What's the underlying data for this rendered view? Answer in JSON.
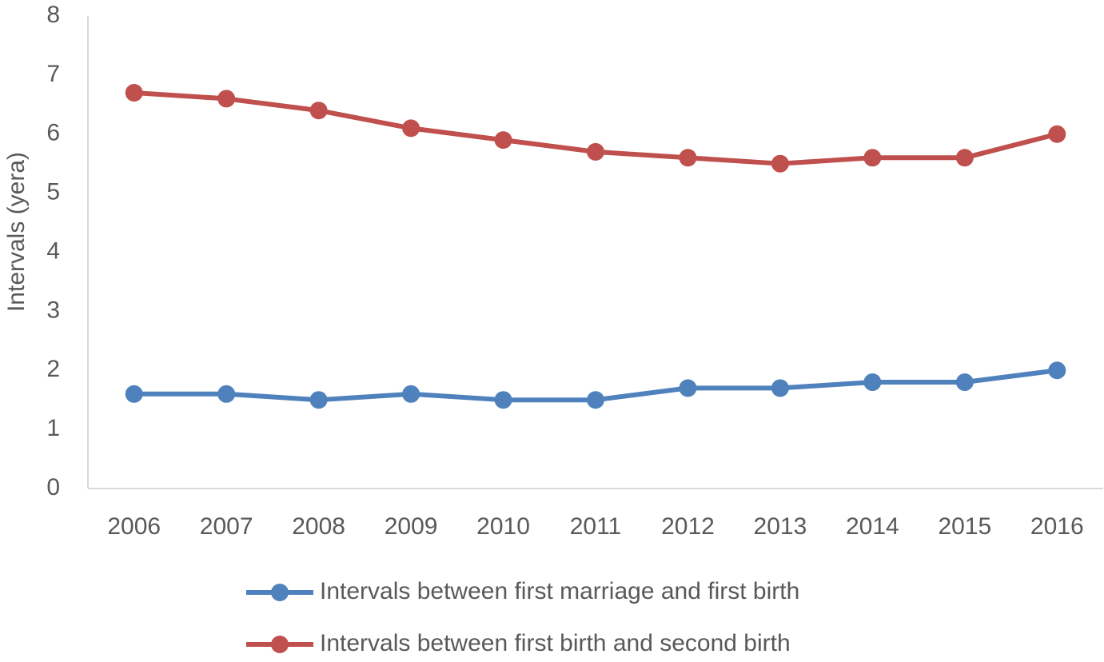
{
  "chart_data": {
    "type": "line",
    "y_label": "Intervals (yera)",
    "categories": [
      "2006",
      "2007",
      "2008",
      "2009",
      "2010",
      "2011",
      "2012",
      "2013",
      "2014",
      "2015",
      "2016"
    ],
    "series": [
      {
        "name": "Intervals between first marriage and first birth",
        "color": "#4f81bd",
        "values": [
          1.6,
          1.6,
          1.5,
          1.6,
          1.5,
          1.5,
          1.7,
          1.7,
          1.8,
          1.8,
          2.0
        ]
      },
      {
        "name": "Intervals between first birth and second birth",
        "color": "#c0504d",
        "values": [
          6.7,
          6.6,
          6.4,
          6.1,
          5.9,
          5.7,
          5.6,
          5.5,
          5.6,
          5.6,
          6.0
        ]
      }
    ],
    "ylim": [
      0,
      8
    ],
    "yticks": [
      0,
      1,
      2,
      3,
      4,
      5,
      6,
      7,
      8
    ],
    "grid": false,
    "legend": "bottom"
  }
}
